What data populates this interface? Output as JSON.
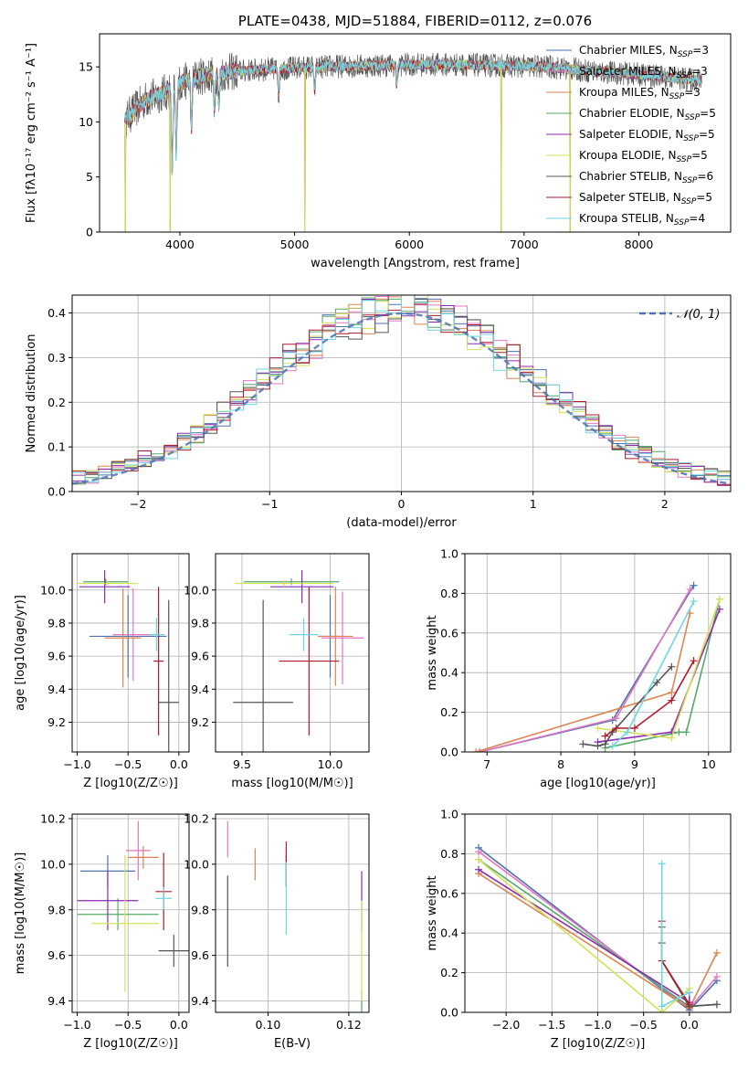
{
  "colors": {
    "miles_chabrier": "#4c72b0",
    "miles_salpeter": "#e377c2",
    "miles_kroupa": "#dd8452",
    "elodie_chabrier": "#55a868",
    "elodie_salpeter": "#8c2bb0",
    "elodie_kroupa": "#d4e157",
    "stelib_chabrier": "#555555",
    "stelib_salpeter": "#b2182b",
    "stelib_kroupa": "#6fd6e0",
    "gaussian": "#4c72b0"
  },
  "chart_data": [
    {
      "id": "spectrum",
      "type": "line",
      "title": "PLATE=0438, MJD=51884, FIBERID=0112, z=0.076",
      "xlabel": "wavelength [Angstrom, rest frame]",
      "ylabel": "Flux [fλ10⁻¹⁷ erg cm⁻² s⁻¹ A⁻¹]",
      "xlim": [
        3300,
        8800
      ],
      "ylim": [
        0,
        18
      ],
      "xticks": [
        "4000",
        "5000",
        "6000",
        "7000",
        "8000"
      ],
      "yticks": [
        "0",
        "5",
        "10",
        "15"
      ],
      "legend_position": "upper-right",
      "legend": [
        {
          "label": "Chabrier MILES, N_SSP=3",
          "color_key": "miles_chabrier"
        },
        {
          "label": "Salpeter MILES, N_SSP=3",
          "color_key": "miles_salpeter"
        },
        {
          "label": "Kroupa MILES, N_SSP=3",
          "color_key": "miles_kroupa"
        },
        {
          "label": "Chabrier ELODIE, N_SSP=5",
          "color_key": "elodie_chabrier"
        },
        {
          "label": "Salpeter ELODIE, N_SSP=5",
          "color_key": "elodie_salpeter"
        },
        {
          "label": "Kroupa ELODIE, N_SSP=5",
          "color_key": "elodie_kroupa"
        },
        {
          "label": "Chabrier STELIB, N_SSP=6",
          "color_key": "stelib_chabrier"
        },
        {
          "label": "Salpeter STELIB, N_SSP=5",
          "color_key": "stelib_salpeter"
        },
        {
          "label": "Kroupa STELIB, N_SSP=4",
          "color_key": "stelib_kroupa"
        }
      ],
      "continuum": {
        "x": [
          3520,
          3700,
          3900,
          4000,
          4200,
          4500,
          4800,
          5200,
          5600,
          6000,
          6400,
          6800,
          7200,
          7600,
          8000,
          8400,
          8550
        ],
        "y": [
          10.2,
          12.0,
          12.8,
          13.5,
          14.2,
          14.6,
          14.8,
          15.0,
          15.1,
          15.2,
          15.2,
          15.1,
          15.0,
          14.6,
          14.3,
          13.9,
          13.8
        ]
      },
      "absorption_dips": [
        [
          3933,
          5.5
        ],
        [
          3968,
          7.0
        ],
        [
          4101,
          9.5
        ],
        [
          4300,
          11.0
        ],
        [
          4340,
          11.5
        ],
        [
          4861,
          12.5
        ],
        [
          5175,
          12.8
        ],
        [
          5890,
          13.5
        ]
      ],
      "deep_spikes_x": [
        3525,
        3915,
        5090,
        6800,
        7400
      ]
    },
    {
      "id": "residuals",
      "type": "histogram",
      "xlabel": "(data-model)/error",
      "ylabel": "Normed distribution",
      "xlim": [
        -2.5,
        2.5
      ],
      "ylim": [
        0,
        0.44
      ],
      "xticks": [
        "−2",
        "−1",
        "0",
        "1",
        "2"
      ],
      "yticks": [
        "0.0",
        "0.1",
        "0.2",
        "0.3",
        "0.4"
      ],
      "legend": [
        {
          "label": "𝒩(0, 1)",
          "style": "dashed"
        }
      ],
      "legend_position": "upper-right",
      "bin_width": 0.1,
      "reference_curve": "standard normal"
    },
    {
      "id": "age_vs_Z",
      "type": "errorbar",
      "xlabel": "Z [log10(Z/Z☉)]",
      "ylabel": "age  [log10(age/yr)]",
      "xlim": [
        -1.05,
        0.1
      ],
      "ylim": [
        9.02,
        10.22
      ],
      "xticks": [
        "−1.0",
        "−0.5",
        "0.0"
      ],
      "yticks": [
        "9.2",
        "9.4",
        "9.6",
        "9.8",
        "10.0"
      ],
      "points": [
        {
          "color_key": "miles_chabrier",
          "x": -0.5,
          "xerr": 0.38,
          "y": 9.72,
          "yerr": 0.25
        },
        {
          "color_key": "miles_salpeter",
          "x": -0.45,
          "xerr": 0.2,
          "y": 9.73,
          "yerr": 0.28
        },
        {
          "color_key": "miles_kroupa",
          "x": -0.55,
          "xerr": 0.18,
          "y": 9.71,
          "yerr": 0.3
        },
        {
          "color_key": "elodie_chabrier",
          "x": -0.72,
          "xerr": 0.22,
          "y": 10.05,
          "yerr": 0.02
        },
        {
          "color_key": "elodie_salpeter",
          "x": -0.73,
          "xerr": 0.25,
          "y": 10.02,
          "yerr": 0.1
        },
        {
          "color_key": "elodie_kroupa",
          "x": -0.7,
          "xerr": 0.3,
          "y": 10.04,
          "yerr": 0.02
        },
        {
          "color_key": "stelib_chabrier",
          "x": -0.1,
          "xerr": 0.1,
          "y": 9.32,
          "yerr": 0.62
        },
        {
          "color_key": "stelib_salpeter",
          "x": -0.2,
          "xerr": 0.05,
          "y": 9.57,
          "yerr": 0.45
        },
        {
          "color_key": "stelib_kroupa",
          "x": -0.22,
          "xerr": 0.08,
          "y": 9.73,
          "yerr": 0.1
        }
      ]
    },
    {
      "id": "age_vs_mass",
      "type": "errorbar",
      "xlabel": "mass [log10(M/M☉)]",
      "ylabel": "",
      "xlim": [
        9.35,
        10.22
      ],
      "ylim": [
        9.02,
        10.22
      ],
      "xticks": [
        "9.5",
        "10.0"
      ],
      "yticks": [
        "9.2",
        "9.4",
        "9.6",
        "9.8",
        "10.0"
      ],
      "points": [
        {
          "color_key": "miles_chabrier",
          "x": 10.0,
          "xerr": 0.06,
          "y": 9.72,
          "yerr": 0.25
        },
        {
          "color_key": "miles_salpeter",
          "x": 10.07,
          "xerr": 0.12,
          "y": 9.71,
          "yerr": 0.28
        },
        {
          "color_key": "miles_kroupa",
          "x": 10.03,
          "xerr": 0.1,
          "y": 9.72,
          "yerr": 0.3
        },
        {
          "color_key": "elodie_chabrier",
          "x": 9.78,
          "xerr": 0.27,
          "y": 10.05,
          "yerr": 0.02
        },
        {
          "color_key": "elodie_salpeter",
          "x": 9.84,
          "xerr": 0.18,
          "y": 10.02,
          "yerr": 0.1
        },
        {
          "color_key": "elodie_kroupa",
          "x": 9.74,
          "xerr": 0.28,
          "y": 10.04,
          "yerr": 0.02
        },
        {
          "color_key": "stelib_chabrier",
          "x": 9.62,
          "xerr": 0.17,
          "y": 9.32,
          "yerr": 0.62
        },
        {
          "color_key": "stelib_salpeter",
          "x": 9.88,
          "xerr": 0.17,
          "y": 9.57,
          "yerr": 0.45
        },
        {
          "color_key": "stelib_kroupa",
          "x": 9.85,
          "xerr": 0.08,
          "y": 9.73,
          "yerr": 0.1
        }
      ]
    },
    {
      "id": "weight_vs_age",
      "type": "line",
      "xlabel": "age  [log10(age/yr)]",
      "ylabel": "mass weight",
      "xlim": [
        6.7,
        10.3
      ],
      "ylim": [
        0,
        1.0
      ],
      "xticks": [
        "7",
        "8",
        "9",
        "10"
      ],
      "yticks": [
        "0.0",
        "0.2",
        "0.4",
        "0.6",
        "0.8",
        "1.0"
      ],
      "series": [
        {
          "color_key": "miles_chabrier",
          "x": [
            6.9,
            8.7,
            9.8
          ],
          "y": [
            0.0,
            0.16,
            0.84
          ]
        },
        {
          "color_key": "miles_salpeter",
          "x": [
            6.9,
            8.75,
            9.75
          ],
          "y": [
            0.0,
            0.17,
            0.82
          ]
        },
        {
          "color_key": "miles_kroupa",
          "x": [
            6.85,
            9.5,
            9.75
          ],
          "y": [
            0.0,
            0.3,
            0.7
          ]
        },
        {
          "color_key": "elodie_chabrier",
          "x": [
            8.6,
            9.6,
            9.7,
            10.15
          ],
          "y": [
            0.02,
            0.1,
            0.1,
            0.77
          ]
        },
        {
          "color_key": "elodie_salpeter",
          "x": [
            8.5,
            9.5,
            10.15
          ],
          "y": [
            0.05,
            0.1,
            0.72
          ]
        },
        {
          "color_key": "elodie_kroupa",
          "x": [
            8.5,
            9.5,
            10.15
          ],
          "y": [
            0.12,
            0.07,
            0.77
          ]
        },
        {
          "color_key": "stelib_chabrier",
          "x": [
            8.3,
            8.5,
            8.6,
            8.7,
            9.3,
            9.5
          ],
          "y": [
            0.04,
            0.03,
            0.04,
            0.1,
            0.35,
            0.43
          ]
        },
        {
          "color_key": "stelib_salpeter",
          "x": [
            8.6,
            8.75,
            9.0,
            9.5,
            9.8
          ],
          "y": [
            0.08,
            0.12,
            0.12,
            0.26,
            0.46
          ]
        },
        {
          "color_key": "stelib_kroupa",
          "x": [
            8.7,
            8.9,
            9.8
          ],
          "y": [
            0.03,
            0.1,
            0.76
          ]
        }
      ]
    },
    {
      "id": "mass_vs_Z",
      "type": "errorbar",
      "xlabel": "Z [log10(Z/Z☉)]",
      "ylabel": "mass [log10(M/M☉)]",
      "xlim": [
        -1.05,
        0.1
      ],
      "ylim": [
        9.35,
        10.22
      ],
      "xticks": [
        "−1.0",
        "−0.5",
        "0.0"
      ],
      "yticks": [
        "9.4",
        "9.6",
        "9.8",
        "10.0",
        "10.2"
      ],
      "points": [
        {
          "color_key": "miles_chabrier",
          "x": -0.7,
          "xerr": 0.27,
          "y": 9.97,
          "yerr": 0.07
        },
        {
          "color_key": "miles_salpeter",
          "x": -0.4,
          "xerr": 0.12,
          "y": 10.06,
          "yerr": 0.13
        },
        {
          "color_key": "miles_kroupa",
          "x": -0.35,
          "xerr": 0.15,
          "y": 10.03,
          "yerr": 0.05
        },
        {
          "color_key": "elodie_chabrier",
          "x": -0.6,
          "xerr": 0.4,
          "y": 9.78,
          "yerr": 0.07
        },
        {
          "color_key": "elodie_salpeter",
          "x": -0.7,
          "xerr": 0.3,
          "y": 9.84,
          "yerr": 0.13
        },
        {
          "color_key": "elodie_kroupa",
          "x": -0.53,
          "xerr": 0.33,
          "y": 9.74,
          "yerr": 0.3
        },
        {
          "color_key": "stelib_chabrier",
          "x": -0.05,
          "xerr": 0.15,
          "y": 9.62,
          "yerr": 0.07
        },
        {
          "color_key": "stelib_salpeter",
          "x": -0.15,
          "xerr": 0.08,
          "y": 9.88,
          "yerr": 0.17
        },
        {
          "color_key": "stelib_kroupa",
          "x": -0.15,
          "xerr": 0.08,
          "y": 9.85,
          "yerr": 0.05
        }
      ]
    },
    {
      "id": "mass_vs_EBV",
      "type": "errorbar",
      "xlabel": "E(B-V)",
      "ylabel": "",
      "xlim": [
        0.087,
        0.125
      ],
      "ylim": [
        9.35,
        10.22
      ],
      "xticks": [
        "0.10",
        "0.12"
      ],
      "yticks": [
        "9.4",
        "9.6",
        "9.8",
        "10.0",
        "10.2"
      ],
      "points": [
        {
          "color_key": "miles_chabrier",
          "x": 0.1045,
          "xerr": 0,
          "y": 9.97,
          "yerr": 0.07
        },
        {
          "color_key": "miles_salpeter",
          "x": 0.09,
          "xerr": 0,
          "y": 10.11,
          "yerr": 0.08
        },
        {
          "color_key": "miles_kroupa",
          "x": 0.0968,
          "xerr": 0,
          "y": 10.0,
          "yerr": 0.07
        },
        {
          "color_key": "elodie_chabrier",
          "x": 0.1232,
          "xerr": 0,
          "y": 9.4,
          "yerr": 0.05
        },
        {
          "color_key": "elodie_salpeter",
          "x": 0.1232,
          "xerr": 0,
          "y": 9.84,
          "yerr": 0.13
        },
        {
          "color_key": "elodie_kroupa",
          "x": 0.1232,
          "xerr": 0,
          "y": 9.62,
          "yerr": 0.22
        },
        {
          "color_key": "stelib_chabrier",
          "x": 0.09,
          "xerr": 0,
          "y": 9.75,
          "yerr": 0.2
        },
        {
          "color_key": "stelib_salpeter",
          "x": 0.1045,
          "xerr": 0,
          "y": 10.0,
          "yerr": 0.1
        },
        {
          "color_key": "stelib_kroupa",
          "x": 0.1045,
          "xerr": 0,
          "y": 9.85,
          "yerr": 0.16
        }
      ]
    },
    {
      "id": "weight_vs_Z",
      "type": "line",
      "xlabel": "Z [log10(Z/Z☉)]",
      "ylabel": "mass weight",
      "xlim": [
        -2.45,
        0.45
      ],
      "ylim": [
        0,
        1.0
      ],
      "xticks": [
        "−2.0",
        "−1.5",
        "−1.0",
        "−0.5",
        "0.0"
      ],
      "yticks": [
        "0.0",
        "0.2",
        "0.4",
        "0.6",
        "0.8",
        "1.0"
      ],
      "series": [
        {
          "color_key": "miles_chabrier",
          "x": [
            -2.3,
            0.0,
            0.3
          ],
          "y": [
            0.83,
            0.01,
            0.16
          ]
        },
        {
          "color_key": "miles_salpeter",
          "x": [
            -2.3,
            0.0,
            0.3
          ],
          "y": [
            0.81,
            0.02,
            0.18
          ]
        },
        {
          "color_key": "miles_kroupa",
          "x": [
            -2.3,
            0.0,
            0.3
          ],
          "y": [
            0.7,
            0.02,
            0.3
          ]
        },
        {
          "color_key": "elodie_chabrier",
          "x": [
            -2.3,
            0.0,
            0.3
          ],
          "y": [
            0.77,
            0.03,
            0.04
          ]
        },
        {
          "color_key": "elodie_salpeter",
          "x": [
            -2.3,
            0.0,
            0.0
          ],
          "y": [
            0.72,
            0.05,
            0.1
          ]
        },
        {
          "color_key": "elodie_kroupa",
          "x": [
            -2.3,
            -0.3,
            0.0
          ],
          "y": [
            0.77,
            0.0,
            0.12
          ]
        },
        {
          "color_key": "stelib_chabrier",
          "x": [
            -0.3,
            -0.3,
            -0.3,
            0.0,
            0.3
          ],
          "y": [
            0.43,
            0.35,
            0.26,
            0.03,
            0.04
          ]
        },
        {
          "color_key": "stelib_salpeter",
          "x": [
            -0.3,
            -0.3,
            0.0
          ],
          "y": [
            0.46,
            0.26,
            0.04
          ]
        },
        {
          "color_key": "stelib_kroupa",
          "x": [
            -0.3,
            -0.3,
            0.0
          ],
          "y": [
            0.75,
            0.03,
            0.1
          ]
        }
      ]
    }
  ]
}
